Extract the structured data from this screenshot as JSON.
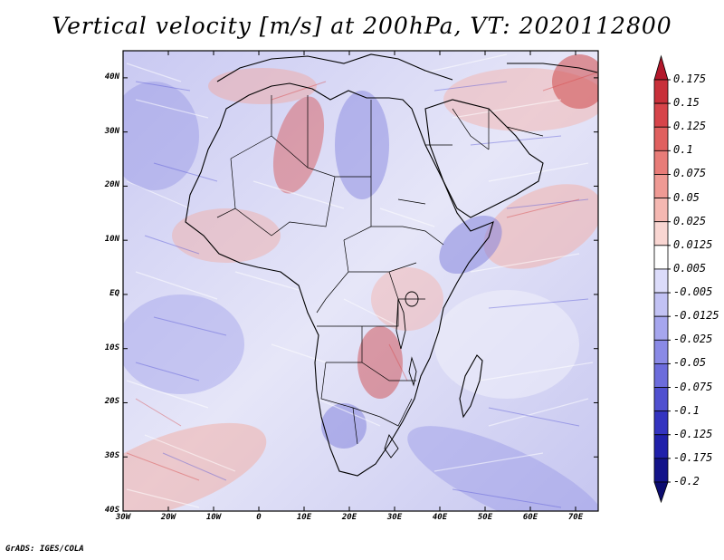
{
  "title": "Vertical velocity [m/s] at 200hPa, VT: 2020112800",
  "footer": "GrADS: IGES/COLA",
  "map": {
    "lon_range": [
      -30,
      75
    ],
    "lat_range": [
      -40,
      45
    ],
    "lat_labels": [
      "40N",
      "30N",
      "20N",
      "10N",
      "EQ",
      "10S",
      "20S",
      "30S",
      "40S"
    ],
    "lat_values": [
      40,
      30,
      20,
      10,
      0,
      -10,
      -20,
      -30,
      -40
    ],
    "lon_labels": [
      "30W",
      "20W",
      "10W",
      "0",
      "10E",
      "20E",
      "30E",
      "40E",
      "50E",
      "60E",
      "70E"
    ],
    "lon_values": [
      -30,
      -20,
      -10,
      0,
      10,
      20,
      30,
      40,
      50,
      60,
      70
    ]
  },
  "colorbar": {
    "labels": [
      "0.175",
      "0.15",
      "0.125",
      "0.1",
      "0.075",
      "0.05",
      "0.025",
      "0.0125",
      "0.005",
      "-0.005",
      "-0.0125",
      "-0.025",
      "-0.05",
      "-0.075",
      "-0.1",
      "-0.125",
      "-0.175",
      "-0.2"
    ],
    "colors": [
      "#b2182b",
      "#c8303a",
      "#d6444a",
      "#e0605f",
      "#e87c78",
      "#ef9a94",
      "#f5b8b2",
      "#f9d6d2",
      "#ffffff",
      "#dcdcfa",
      "#c2c2f4",
      "#a6a6ee",
      "#8a8ae6",
      "#6c6cdc",
      "#5050d0",
      "#3434c0",
      "#2020aa",
      "#14148a",
      "#0c0c70"
    ]
  }
}
